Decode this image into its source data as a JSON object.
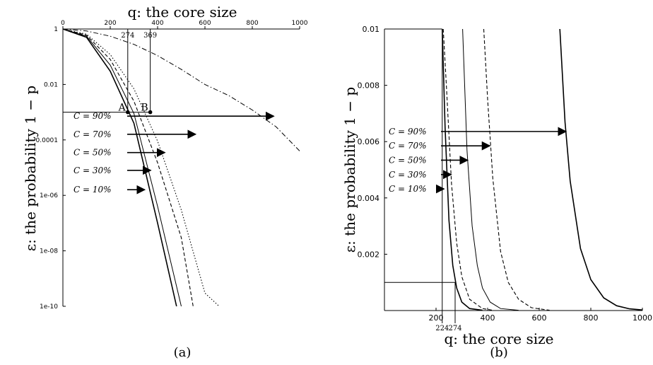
{
  "chart_data": [
    {
      "panel_label": "(a)",
      "type": "line",
      "title": "",
      "xlabel": "q: the core size",
      "ylabel": "ε: the probability 1 − p",
      "x_axis_position": "top",
      "xlim": [
        0,
        1000
      ],
      "ylim": [
        1e-10,
        1
      ],
      "yscale": "log",
      "xticks": [
        "0",
        "200",
        "400",
        "600",
        "800",
        "1000"
      ],
      "yticks": [
        "1",
        "0.01",
        "0.0001",
        "1e-06",
        "1e-08",
        "1e-10"
      ],
      "grid": false,
      "annotations": {
        "threshold_y": 0.001,
        "points": [
          {
            "label": "A",
            "x": 274,
            "y": 0.001
          },
          {
            "label": "B",
            "x": 369,
            "y": 0.001
          }
        ],
        "tick_labels": [
          "274",
          "369"
        ]
      },
      "arrow_labels": [
        "C = 90%",
        "C = 70%",
        "C = 50%",
        "C = 30%",
        "C = 10%"
      ],
      "series": [
        {
          "label": "C = 10%",
          "style": "solid",
          "width": 1.6,
          "arrow_y": 1.6e-06,
          "arrow_x": 345,
          "x": [
            0,
            100,
            200,
            300,
            400,
            480
          ],
          "y": [
            1,
            0.5,
            0.03,
            0.0004,
            1e-07,
            1e-10
          ]
        },
        {
          "label": "C = 30%",
          "style": "solid",
          "width": 1.0,
          "arrow_y": 8e-06,
          "arrow_x": 370,
          "x": [
            0,
            100,
            200,
            300,
            400,
            500
          ],
          "y": [
            1,
            0.55,
            0.05,
            0.0009,
            4e-07,
            1e-10
          ]
        },
        {
          "label": "C = 50%",
          "style": "dashed",
          "width": 1.1,
          "arrow_y": 3.5e-05,
          "arrow_x": 430,
          "x": [
            0,
            100,
            200,
            300,
            400,
            500,
            550
          ],
          "y": [
            1,
            0.6,
            0.08,
            0.0025,
            1.5e-05,
            3e-08,
            1e-10
          ]
        },
        {
          "label": "C = 70%",
          "style": "dotted",
          "width": 1.1,
          "arrow_y": 0.00016,
          "arrow_x": 560,
          "x": [
            0,
            100,
            200,
            300,
            400,
            500,
            600,
            660
          ],
          "y": [
            1,
            0.65,
            0.12,
            0.007,
            9e-05,
            3e-07,
            3e-10,
            1e-10
          ]
        },
        {
          "label": "C = 90%",
          "style": "dashdot",
          "width": 1.0,
          "arrow_y": 0.00072,
          "arrow_x": 890,
          "x": [
            0,
            100,
            200,
            300,
            400,
            500,
            600,
            700,
            800,
            900,
            1000
          ],
          "y": [
            1,
            0.85,
            0.55,
            0.28,
            0.11,
            0.035,
            0.01,
            0.004,
            0.0012,
            0.0003,
            4e-05
          ]
        }
      ]
    },
    {
      "panel_label": "(b)",
      "type": "line",
      "title": "",
      "xlabel": "q: the core size",
      "ylabel": "ε: the probability 1 − p",
      "x_axis_position": "bottom",
      "xlim": [
        0,
        1000
      ],
      "ylim": [
        0,
        0.01
      ],
      "yscale": "linear",
      "xticks": [
        "200",
        "400",
        "600",
        "800",
        "1000"
      ],
      "yticks": [
        "0.002",
        "0.004",
        "0.006",
        "0.008",
        "0.01"
      ],
      "grid": false,
      "annotations": {
        "threshold_y": 0.001,
        "tick_labels": [
          "224",
          "274"
        ],
        "vertical_lines_x": [
          224,
          274
        ]
      },
      "arrow_labels": [
        "C = 90%",
        "C = 70%",
        "C = 50%",
        "C = 30%",
        "C = 10%"
      ],
      "series": [
        {
          "label": "C = 10%",
          "style": "solid",
          "width": 1.6,
          "arrow_y": 0.00432,
          "arrow_x": 230,
          "x": [
            224,
            235,
            250,
            265,
            280,
            300,
            330,
            380
          ],
          "y": [
            0.01,
            0.0065,
            0.0032,
            0.0016,
            0.0008,
            0.0003,
            7e-05,
            1e-05
          ]
        },
        {
          "label": "C = 30%",
          "style": "dashed",
          "width": 1.1,
          "arrow_y": 0.00483,
          "arrow_x": 258,
          "x": [
            228,
            240,
            260,
            280,
            300,
            330,
            380,
            420
          ],
          "y": [
            0.01,
            0.008,
            0.0045,
            0.0024,
            0.0012,
            0.0004,
            7e-05,
            1e-05
          ]
        },
        {
          "label": "C = 50%",
          "style": "solid",
          "width": 1.0,
          "arrow_y": 0.00534,
          "arrow_x": 322,
          "x": [
            303,
            320,
            340,
            360,
            380,
            410,
            450,
            520
          ],
          "y": [
            0.01,
            0.0057,
            0.003,
            0.0016,
            0.0008,
            0.0003,
            7e-05,
            1e-05
          ]
        },
        {
          "label": "C = 70%",
          "style": "dashed",
          "width": 1.1,
          "arrow_y": 0.00585,
          "arrow_x": 408,
          "x": [
            385,
            400,
            420,
            450,
            480,
            520,
            570,
            640
          ],
          "y": [
            0.01,
            0.0075,
            0.0047,
            0.0021,
            0.001,
            0.0004,
            0.0001,
            1e-05
          ]
        },
        {
          "label": "C = 90%",
          "style": "solid",
          "width": 1.6,
          "arrow_y": 0.00636,
          "arrow_x": 703,
          "x": [
            680,
            700,
            720,
            760,
            800,
            850,
            900,
            950,
            1000
          ],
          "y": [
            0.01,
            0.0067,
            0.0046,
            0.0022,
            0.0011,
            0.00045,
            0.00017,
            6e-05,
            2e-05
          ]
        }
      ]
    }
  ]
}
